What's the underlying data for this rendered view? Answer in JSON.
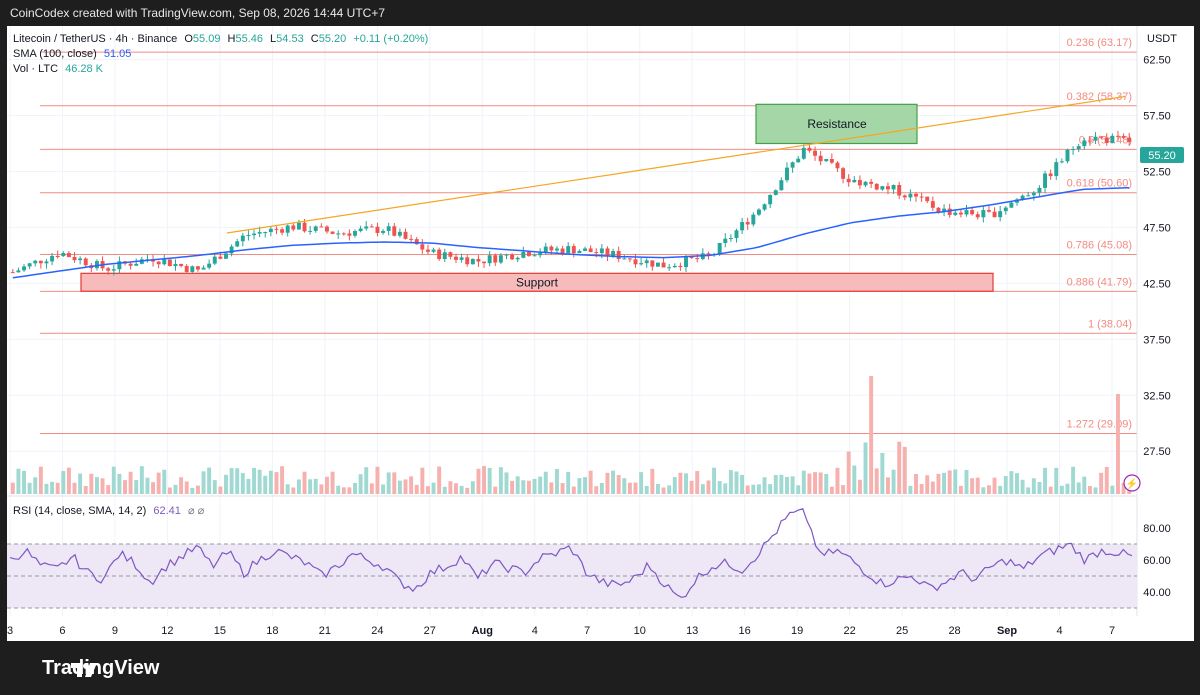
{
  "header": {
    "credit": "CoinCodex created with TradingView.com, Sep 08, 2026 14:44 UTC+7"
  },
  "legend": {
    "symbol": "Litecoin / TetherUS · 4h · Binance",
    "o_label": "O",
    "o": "55.09",
    "h_label": "H",
    "h": "55.46",
    "l_label": "L",
    "l": "54.53",
    "c_label": "C",
    "c": "55.20",
    "change": "+0.11 (+0.20%)",
    "sma_label": "SMA (100, close)",
    "sma_value": "51.05",
    "vol_label": "Vol · LTC",
    "vol_value": "46.28 K",
    "rsi_label": "RSI (14, close, SMA, 14, 2)",
    "rsi_value": "62.41",
    "rsi_extra": "⌀ ⌀"
  },
  "currency": "USDT",
  "colors": {
    "up": "#26a69a",
    "down": "#ef5350",
    "sma": "#2962ff",
    "fib": "#f28b82",
    "trendline": "#f5a623",
    "resistance_fill": "#a5d6a7",
    "resistance_stroke": "#43a047",
    "support_fill": "#f8bbbb",
    "support_stroke": "#e53935",
    "rsi_line": "#7e57c2",
    "rsi_band": "#ede7f6"
  },
  "chart_data": {
    "type": "line",
    "title": "Litecoin / TetherUS · 4h · Binance",
    "price_axis": {
      "ticks": [
        62.5,
        57.5,
        52.5,
        47.5,
        42.5,
        37.5,
        32.5,
        27.5
      ],
      "tick_labels": [
        "62.50",
        "57.50",
        "52.50",
        "47.50",
        "42.50",
        "37.50",
        "32.50",
        "27.50"
      ],
      "range": [
        23.5,
        65.5
      ]
    },
    "date_axis": {
      "labels": [
        "3",
        "6",
        "9",
        "12",
        "15",
        "18",
        "21",
        "24",
        "27",
        "Aug",
        "4",
        "7",
        "10",
        "13",
        "16",
        "19",
        "22",
        "25",
        "28",
        "Sep",
        "4",
        "7"
      ]
    },
    "last_price": "55.20",
    "series": [
      {
        "type": "candles",
        "x": [
          "3",
          "6",
          "9",
          "12",
          "15",
          "18",
          "21",
          "24",
          "27",
          "Aug",
          "4",
          "7",
          "10",
          "13",
          "16",
          "19",
          "21",
          "22",
          "23",
          "25",
          "28",
          "Sep",
          "4",
          "7",
          "8"
        ],
        "values": [
          43.5,
          45.3,
          43.8,
          44.8,
          43.6,
          46.8,
          47.6,
          47.0,
          47.4,
          45.2,
          44.5,
          45.3,
          45.6,
          45.0,
          44.1,
          44.9,
          49.0,
          54.5,
          51.8,
          50.8,
          49.0,
          48.6,
          51.0,
          55.6,
          55.2
        ]
      },
      {
        "name": "SMA (100, close)",
        "type": "line",
        "values": [
          43.0,
          43.6,
          44.2,
          44.6,
          45.0,
          45.5,
          45.9,
          46.1,
          46.2,
          46.1,
          45.7,
          45.4,
          45.1,
          44.9,
          44.8,
          45.0,
          45.7,
          46.9,
          47.9,
          48.5,
          48.9,
          49.5,
          50.2,
          50.9,
          51.05
        ]
      }
    ],
    "fib_levels": [
      {
        "label": "0.236 (63.17)",
        "value": 63.17
      },
      {
        "label": "0.382 (58.37)",
        "value": 58.37
      },
      {
        "label": "0.5 (54.48)",
        "value": 54.48
      },
      {
        "label": "0.618 (50.60)",
        "value": 50.6
      },
      {
        "label": "0.786 (45.08)",
        "value": 45.08
      },
      {
        "label": "0.886 (41.79)",
        "value": 41.79
      },
      {
        "label": "1 (38.04)",
        "value": 38.04
      },
      {
        "label": "1.272 (29.09)",
        "value": 29.09
      }
    ],
    "annotations": [
      {
        "label": "Resistance",
        "price_range": [
          55.0,
          58.5
        ]
      },
      {
        "label": "Support",
        "price_range": [
          41.8,
          43.4
        ]
      }
    ],
    "trendline": {
      "from": {
        "x": "15",
        "price": 47.0
      },
      "to": {
        "x": "8",
        "price": 59.2
      }
    },
    "rsi": {
      "ticks": [
        80,
        60,
        40
      ],
      "tick_labels": [
        "80.00",
        "60.00",
        "40.00"
      ],
      "range": [
        25,
        95
      ],
      "band": [
        30,
        70
      ],
      "midline": 50,
      "values": [
        60,
        66,
        56,
        54,
        62,
        52,
        48,
        64,
        58,
        46,
        56,
        62,
        68,
        56,
        65,
        52,
        60,
        66,
        62,
        58,
        50,
        56,
        64,
        60,
        56,
        46,
        42,
        52,
        56,
        62,
        48,
        58,
        55,
        52,
        61,
        64,
        68,
        52,
        46,
        44,
        48,
        57,
        45,
        35,
        48,
        56,
        58,
        54,
        64,
        76,
        88,
        90,
        62,
        66,
        60,
        52,
        45,
        48,
        50,
        42,
        46,
        52,
        48,
        56,
        60,
        54,
        62,
        66,
        70,
        60,
        66,
        65,
        62
      ]
    },
    "volume": {
      "unit": "LTC",
      "last": "46.28 K"
    }
  }
}
